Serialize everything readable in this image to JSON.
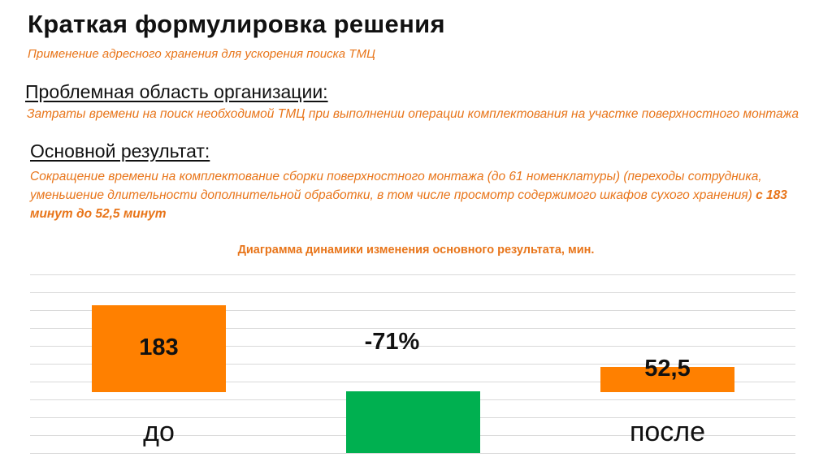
{
  "slide": {
    "title": "Краткая формулировка решения",
    "subtitle": "Применение адресного хранения для ускорения поиска ТМЦ",
    "problem_heading": "Проблемная область организации:",
    "problem_text": "Затраты времени на поиск необходимой ТМЦ при выполнении операции комплектования на участке поверхностного монтажа",
    "result_heading": "Основной результат:",
    "result_text": "Сокращение времени на комплектование сборки поверхностного монтажа (до 61 номенклатуры) (переходы сотрудника, уменьшение длительности дополнительной обработки, в том числе просмотр содержимого шкафов сухого хранения)",
    "result_highlight": "с 183 минут до 52,5 минут"
  },
  "colors": {
    "accent_orange": "#ff8000",
    "text_orange": "#e8751a",
    "change_green": "#00b050",
    "grid": "#d9d9d9"
  },
  "chart_data": {
    "type": "bar",
    "title": "Диаграмма динамики изменения основного результата, мин.",
    "categories": [
      "до",
      "после"
    ],
    "values": [
      183,
      52.5
    ],
    "value_labels": [
      "183",
      "52,5"
    ],
    "change_label": "-71%",
    "grid": true,
    "gridline_count": 11
  }
}
